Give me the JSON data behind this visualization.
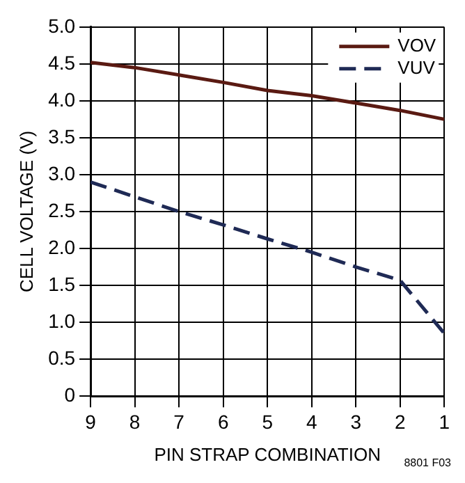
{
  "chart_data": {
    "type": "line",
    "xlabel": "PIN STRAP COMBINATION",
    "ylabel": "CELL VOLTAGE (V)",
    "x": [
      9,
      8,
      7,
      6,
      5,
      4,
      3,
      2,
      1
    ],
    "series": [
      {
        "name": "VOV",
        "color": "#5a1a12",
        "line_style": "solid",
        "values": [
          4.52,
          4.45,
          4.35,
          4.25,
          4.14,
          4.07,
          3.97,
          3.87,
          3.75
        ]
      },
      {
        "name": "VUV",
        "color": "#1f2a55",
        "line_style": "dashed",
        "values": [
          2.9,
          2.7,
          2.5,
          2.32,
          2.13,
          1.95,
          1.75,
          1.57,
          0.85
        ]
      }
    ],
    "xlim": [
      9,
      1
    ],
    "xticks": [
      9,
      8,
      7,
      6,
      5,
      4,
      3,
      2,
      1
    ],
    "ylim": [
      0,
      5
    ],
    "yticks": [
      0,
      0.5,
      {
        "value": 1,
        "label": "1.0"
      },
      1.5,
      {
        "value": 2,
        "label": "2.0"
      },
      2.5,
      {
        "value": 3,
        "label": "3.0"
      },
      3.5,
      {
        "value": 4,
        "label": "4.0"
      },
      4.5,
      {
        "value": 5,
        "label": "5.0"
      }
    ],
    "grid": true,
    "legend": "top right",
    "marker": "none",
    "annotations": [
      "8801 F03"
    ]
  }
}
